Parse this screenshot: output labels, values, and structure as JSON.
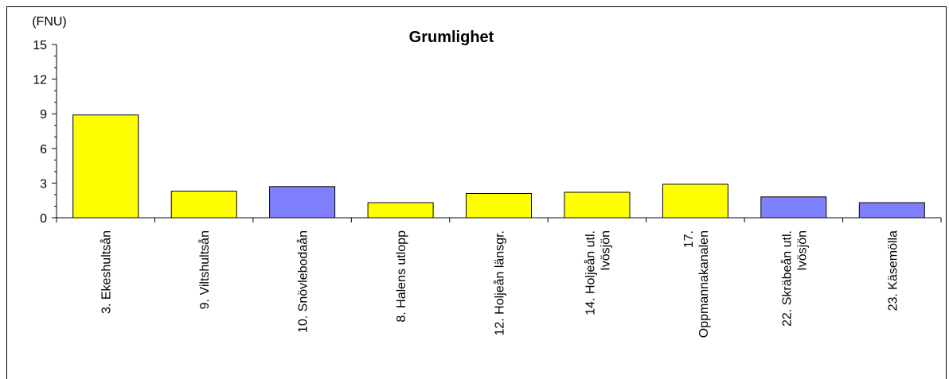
{
  "chart_data": {
    "type": "bar",
    "title": "Grumlighet",
    "ylabel": "(FNU)",
    "xlabel": "",
    "ylim": [
      0,
      15
    ],
    "yticks": [
      0,
      3,
      6,
      9,
      12,
      15
    ],
    "grid": false,
    "legend": "none",
    "categories": [
      [
        "3. Ekeshultsån"
      ],
      [
        "9. Viltshultsån"
      ],
      [
        "10. Snövlebodaån"
      ],
      [
        "8. Halens utlopp"
      ],
      [
        "12. Holjeån länsgr."
      ],
      [
        "14. Holjeån utl.",
        "Ivösjön"
      ],
      [
        "17.",
        "Oppmannakanalen"
      ],
      [
        "22. Skräbeån utl.",
        "Ivösjön"
      ],
      [
        "23. Käsemölla"
      ]
    ],
    "values": [
      8.9,
      2.3,
      2.7,
      1.3,
      2.1,
      2.2,
      2.9,
      1.8,
      1.3
    ],
    "bar_colors": [
      "#ffff00",
      "#ffff00",
      "#8080ff",
      "#ffff00",
      "#ffff00",
      "#ffff00",
      "#ffff00",
      "#8080ff",
      "#8080ff"
    ]
  }
}
